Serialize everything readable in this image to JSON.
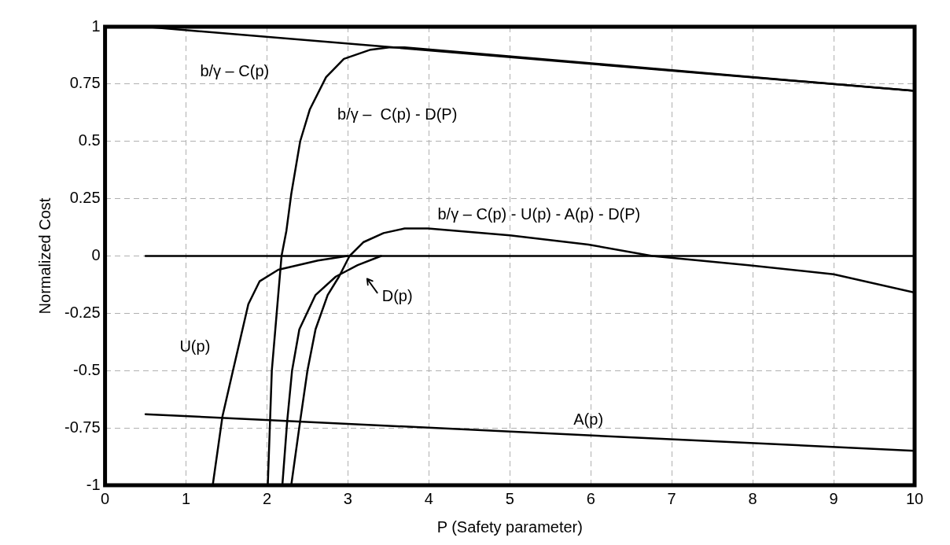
{
  "chart_data": {
    "type": "line",
    "xlabel": "P (Safety parameter)",
    "ylabel": "Normalized Cost",
    "xlim": [
      0,
      10
    ],
    "xticks": [
      0,
      1,
      2,
      3,
      4,
      5,
      6,
      7,
      8,
      9,
      10
    ],
    "ylim": [
      -1,
      1
    ],
    "yticks": [
      -1,
      -0.75,
      -0.5,
      -0.25,
      0,
      0.25,
      0.5,
      0.75,
      1
    ],
    "grid": true,
    "marker": "none",
    "line_style": "solid",
    "series": [
      {
        "name": "b/γ – C(p)",
        "color": "#000000",
        "x": [
          0.5,
          10
        ],
        "values": [
          1.0,
          0.72
        ]
      },
      {
        "color": "#000000",
        "x": [
          0.5,
          10
        ],
        "values": [
          0,
          0
        ]
      },
      {
        "name": "A(p)",
        "color": "#000000",
        "x": [
          0.5,
          10
        ],
        "values": [
          -0.69,
          -0.85
        ]
      },
      {
        "name": "b/γ –  C(p) - D(P)",
        "color": "#000000",
        "x": [
          2.01,
          2.06,
          2.12,
          2.18,
          2.24,
          2.3,
          2.41,
          2.53,
          2.73,
          2.95,
          3.28,
          3.51,
          3.7,
          10
        ],
        "values": [
          -1,
          -0.5,
          -0.25,
          0,
          0.11,
          0.27,
          0.5,
          0.64,
          0.78,
          0.86,
          0.9,
          0.91,
          0.91,
          0.72
        ]
      },
      {
        "name": "U(p)",
        "color": "#000000",
        "x": [
          1.33,
          1.45,
          1.58,
          1.77,
          1.91,
          2.14,
          2.63,
          2.99
        ],
        "values": [
          -1,
          -0.7,
          -0.5,
          -0.21,
          -0.11,
          -0.06,
          -0.02,
          0
        ]
      },
      {
        "name": "D(p)",
        "color": "#000000",
        "x": [
          2.19,
          2.25,
          2.31,
          2.4,
          2.6,
          2.85,
          3.12,
          3.41
        ],
        "values": [
          -1,
          -0.72,
          -0.5,
          -0.32,
          -0.17,
          -0.09,
          -0.04,
          0
        ]
      },
      {
        "name": "b/γ – C(p) - U(p) - A(p) - D(P)",
        "color": "#000000",
        "x": [
          2.3,
          2.41,
          2.5,
          2.6,
          2.75,
          2.89,
          3.02,
          3.19,
          3.44,
          3.7,
          3.99,
          5.0,
          5.97,
          6.76,
          7.95,
          9.0,
          10
        ],
        "values": [
          -1,
          -0.72,
          -0.5,
          -0.32,
          -0.17,
          -0.09,
          0,
          0.06,
          0.1,
          0.12,
          0.12,
          0.09,
          0.05,
          0,
          -0.04,
          -0.08,
          -0.16
        ]
      }
    ]
  }
}
